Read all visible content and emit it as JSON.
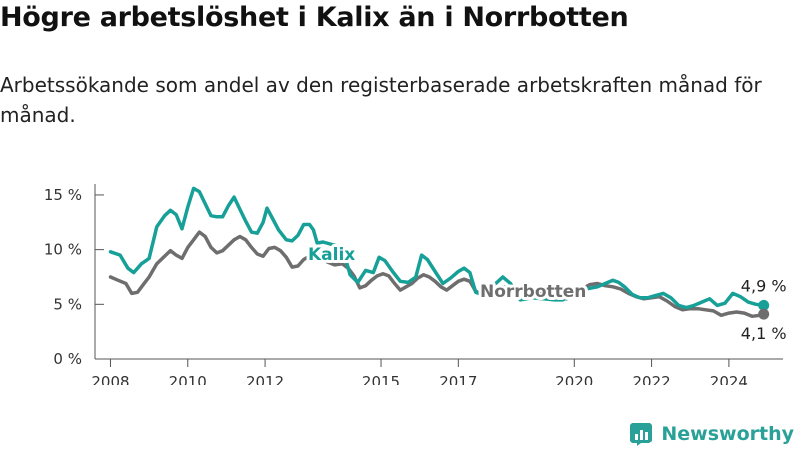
{
  "title": "Högre arbetslöshet i Kalix än i Norrbotten",
  "subtitle": "Arbetssökande som andel av den registerbaserade arbetskraften månad för månad.",
  "brand": {
    "name": "Newsworthy",
    "icon": "newsworthy-logo-icon",
    "color": "#2aa198"
  },
  "chart_data": {
    "type": "line",
    "title": "Högre arbetslöshet i Kalix än i Norrbotten",
    "xlabel": "",
    "ylabel": "",
    "xlim": [
      2007.6,
      2025.4
    ],
    "ylim": [
      0,
      16
    ],
    "grid": false,
    "y_ticks": [
      {
        "value": 0,
        "label": "0 %"
      },
      {
        "value": 5,
        "label": "5 %"
      },
      {
        "value": 10,
        "label": "10 %"
      },
      {
        "value": 15,
        "label": "15 %"
      }
    ],
    "x_ticks": [
      {
        "value": 2008,
        "label": "2008"
      },
      {
        "value": 2010,
        "label": "2010"
      },
      {
        "value": 2012,
        "label": "2012"
      },
      {
        "value": 2015,
        "label": "2015"
      },
      {
        "value": 2017,
        "label": "2017"
      },
      {
        "value": 2020,
        "label": "2020"
      },
      {
        "value": 2022,
        "label": "2022"
      },
      {
        "value": 2024,
        "label": "2024"
      }
    ],
    "series": [
      {
        "name": "Kalix",
        "color": "#17a098",
        "end_label": "4,9 %",
        "points": [
          [
            2008.0,
            9.8
          ],
          [
            2008.25,
            9.5
          ],
          [
            2008.45,
            8.3
          ],
          [
            2008.6,
            7.9
          ],
          [
            2008.8,
            8.7
          ],
          [
            2009.0,
            9.2
          ],
          [
            2009.2,
            12.1
          ],
          [
            2009.4,
            13.1
          ],
          [
            2009.55,
            13.6
          ],
          [
            2009.7,
            13.2
          ],
          [
            2009.85,
            11.9
          ],
          [
            2010.0,
            13.9
          ],
          [
            2010.15,
            15.6
          ],
          [
            2010.3,
            15.3
          ],
          [
            2010.45,
            14.2
          ],
          [
            2010.6,
            13.1
          ],
          [
            2010.75,
            13.0
          ],
          [
            2010.9,
            13.0
          ],
          [
            2011.05,
            14.0
          ],
          [
            2011.2,
            14.8
          ],
          [
            2011.35,
            13.7
          ],
          [
            2011.5,
            12.6
          ],
          [
            2011.65,
            11.6
          ],
          [
            2011.8,
            11.5
          ],
          [
            2011.95,
            12.5
          ],
          [
            2012.05,
            13.8
          ],
          [
            2012.2,
            12.8
          ],
          [
            2012.35,
            11.8
          ],
          [
            2012.55,
            10.9
          ],
          [
            2012.7,
            10.8
          ],
          [
            2012.85,
            11.3
          ],
          [
            2013.0,
            12.3
          ],
          [
            2013.15,
            12.3
          ],
          [
            2013.25,
            11.8
          ],
          [
            2013.35,
            10.6
          ],
          [
            2013.5,
            10.7
          ],
          [
            2014.0,
            10.2
          ],
          [
            2014.2,
            7.7
          ],
          [
            2014.4,
            7.0
          ],
          [
            2014.6,
            8.1
          ],
          [
            2014.8,
            7.9
          ],
          [
            2014.95,
            9.3
          ],
          [
            2015.1,
            9.0
          ],
          [
            2015.3,
            8.0
          ],
          [
            2015.5,
            7.1
          ],
          [
            2015.7,
            7.0
          ],
          [
            2015.9,
            7.5
          ],
          [
            2016.05,
            9.5
          ],
          [
            2016.2,
            9.1
          ],
          [
            2016.4,
            8.0
          ],
          [
            2016.6,
            6.9
          ],
          [
            2016.8,
            7.4
          ],
          [
            2017.0,
            8.0
          ],
          [
            2017.15,
            8.3
          ],
          [
            2017.3,
            7.9
          ],
          [
            2017.45,
            6.1
          ],
          [
            2017.6,
            5.9
          ],
          [
            2018.0,
            7.0
          ],
          [
            2018.15,
            7.5
          ],
          [
            2018.35,
            6.9
          ],
          [
            2018.6,
            5.4
          ],
          [
            2018.9,
            5.6
          ],
          [
            2019.2,
            5.5
          ],
          [
            2019.5,
            5.4
          ],
          [
            2019.7,
            5.4
          ],
          [
            2020.0,
            6.0
          ],
          [
            2020.3,
            6.4
          ],
          [
            2020.6,
            6.6
          ],
          [
            2020.8,
            6.9
          ],
          [
            2021.0,
            7.2
          ],
          [
            2021.15,
            7.0
          ],
          [
            2021.3,
            6.6
          ],
          [
            2021.5,
            5.9
          ],
          [
            2021.7,
            5.6
          ],
          [
            2021.9,
            5.6
          ],
          [
            2022.1,
            5.8
          ],
          [
            2022.3,
            6.0
          ],
          [
            2022.5,
            5.6
          ],
          [
            2022.7,
            4.9
          ],
          [
            2022.9,
            4.7
          ],
          [
            2023.1,
            4.9
          ],
          [
            2023.3,
            5.2
          ],
          [
            2023.5,
            5.5
          ],
          [
            2023.7,
            4.9
          ],
          [
            2023.9,
            5.1
          ],
          [
            2024.1,
            6.0
          ],
          [
            2024.3,
            5.7
          ],
          [
            2024.5,
            5.2
          ],
          [
            2024.7,
            5.0
          ],
          [
            2024.9,
            4.9
          ]
        ]
      },
      {
        "name": "Norrbotten",
        "color": "#6e6e6e",
        "end_label": "4,1 %",
        "points": [
          [
            2008.0,
            7.5
          ],
          [
            2008.2,
            7.2
          ],
          [
            2008.4,
            6.9
          ],
          [
            2008.55,
            6.0
          ],
          [
            2008.7,
            6.1
          ],
          [
            2008.85,
            6.8
          ],
          [
            2009.0,
            7.5
          ],
          [
            2009.2,
            8.7
          ],
          [
            2009.4,
            9.4
          ],
          [
            2009.55,
            9.9
          ],
          [
            2009.7,
            9.5
          ],
          [
            2009.85,
            9.2
          ],
          [
            2010.0,
            10.2
          ],
          [
            2010.15,
            10.9
          ],
          [
            2010.3,
            11.6
          ],
          [
            2010.45,
            11.2
          ],
          [
            2010.6,
            10.2
          ],
          [
            2010.75,
            9.7
          ],
          [
            2010.9,
            9.9
          ],
          [
            2011.05,
            10.4
          ],
          [
            2011.2,
            10.9
          ],
          [
            2011.35,
            11.2
          ],
          [
            2011.5,
            10.9
          ],
          [
            2011.65,
            10.2
          ],
          [
            2011.8,
            9.6
          ],
          [
            2011.95,
            9.4
          ],
          [
            2012.1,
            10.1
          ],
          [
            2012.25,
            10.2
          ],
          [
            2012.4,
            9.9
          ],
          [
            2012.55,
            9.3
          ],
          [
            2012.7,
            8.4
          ],
          [
            2012.85,
            8.5
          ],
          [
            2013.0,
            9.1
          ],
          [
            2013.15,
            9.4
          ],
          [
            2013.3,
            9.7
          ],
          [
            2013.45,
            9.6
          ],
          [
            2013.6,
            8.9
          ],
          [
            2013.8,
            8.6
          ],
          [
            2014.0,
            8.7
          ],
          [
            2014.15,
            8.3
          ],
          [
            2014.3,
            7.6
          ],
          [
            2014.45,
            6.5
          ],
          [
            2014.6,
            6.7
          ],
          [
            2014.75,
            7.2
          ],
          [
            2014.9,
            7.6
          ],
          [
            2015.05,
            7.8
          ],
          [
            2015.2,
            7.6
          ],
          [
            2015.35,
            6.9
          ],
          [
            2015.5,
            6.3
          ],
          [
            2015.65,
            6.6
          ],
          [
            2015.8,
            6.9
          ],
          [
            2015.95,
            7.4
          ],
          [
            2016.1,
            7.7
          ],
          [
            2016.25,
            7.5
          ],
          [
            2016.4,
            7.1
          ],
          [
            2016.55,
            6.6
          ],
          [
            2016.7,
            6.3
          ],
          [
            2016.85,
            6.7
          ],
          [
            2017.0,
            7.1
          ],
          [
            2017.15,
            7.3
          ],
          [
            2017.3,
            7.1
          ],
          [
            2017.45,
            6.2
          ],
          [
            2017.6,
            5.9
          ],
          [
            2017.8,
            6.2
          ],
          [
            2018.0,
            6.5
          ],
          [
            2018.2,
            6.6
          ],
          [
            2018.4,
            6.2
          ],
          [
            2018.6,
            5.7
          ],
          [
            2018.8,
            5.6
          ],
          [
            2019.0,
            5.9
          ],
          [
            2019.2,
            6.1
          ],
          [
            2019.4,
            5.9
          ],
          [
            2019.6,
            5.6
          ],
          [
            2019.8,
            5.5
          ],
          [
            2020.0,
            5.9
          ],
          [
            2020.2,
            6.4
          ],
          [
            2020.4,
            6.8
          ],
          [
            2020.6,
            6.9
          ],
          [
            2020.8,
            6.7
          ],
          [
            2021.0,
            6.6
          ],
          [
            2021.2,
            6.4
          ],
          [
            2021.4,
            6.0
          ],
          [
            2021.6,
            5.7
          ],
          [
            2021.8,
            5.5
          ],
          [
            2022.0,
            5.6
          ],
          [
            2022.2,
            5.7
          ],
          [
            2022.4,
            5.3
          ],
          [
            2022.6,
            4.8
          ],
          [
            2022.8,
            4.5
          ],
          [
            2023.0,
            4.6
          ],
          [
            2023.2,
            4.6
          ],
          [
            2023.4,
            4.5
          ],
          [
            2023.6,
            4.4
          ],
          [
            2023.8,
            4.0
          ],
          [
            2024.0,
            4.2
          ],
          [
            2024.2,
            4.3
          ],
          [
            2024.4,
            4.2
          ],
          [
            2024.6,
            3.9
          ],
          [
            2024.8,
            4.0
          ],
          [
            2024.9,
            4.1
          ]
        ]
      }
    ]
  }
}
